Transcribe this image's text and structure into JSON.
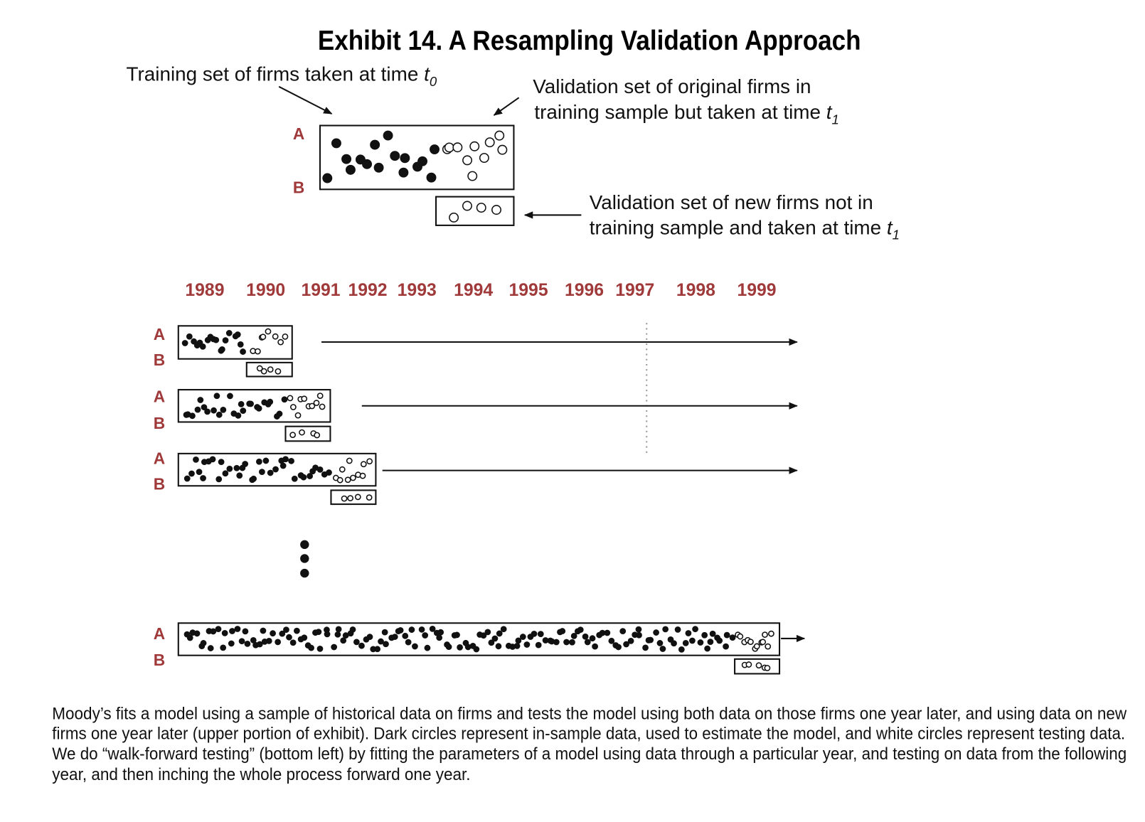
{
  "title": "Exhibit 14. A Resampling Validation Approach",
  "annotations": [
    {
      "lines": [
        {
          "text": "Training set of firms taken at time ",
          "var": "t",
          "sub": "0"
        }
      ]
    },
    {
      "lines": [
        {
          "text": "Validation set of original firms in"
        },
        {
          "text": "training sample but taken at time ",
          "var": "t",
          "sub": "1"
        }
      ]
    },
    {
      "lines": [
        {
          "text": "Validation set of new firms not in"
        },
        {
          "text": "training sample and taken at time ",
          "var": "t",
          "sub": "1"
        }
      ]
    }
  ],
  "panel_labels": [
    "A",
    "B"
  ],
  "years": [
    "1989",
    "1990",
    "1991",
    "1992",
    "1993",
    "1994",
    "1995",
    "1996",
    "1997",
    "1998",
    "1999"
  ],
  "caption": [
    "Moody’s fits a model using a sample of historical data on firms and tests the model using both data on those firms one year later, and using data on new",
    "firms one year later (upper portion of exhibit). Dark circles represent in-sample data, used to estimate the model, and white circles represent testing data.",
    "We do “walk-forward testing” (bottom left) by fitting the parameters of a model using data through a particular year, and testing on data from the following",
    "year, and then inching the whole process forward one year."
  ]
}
